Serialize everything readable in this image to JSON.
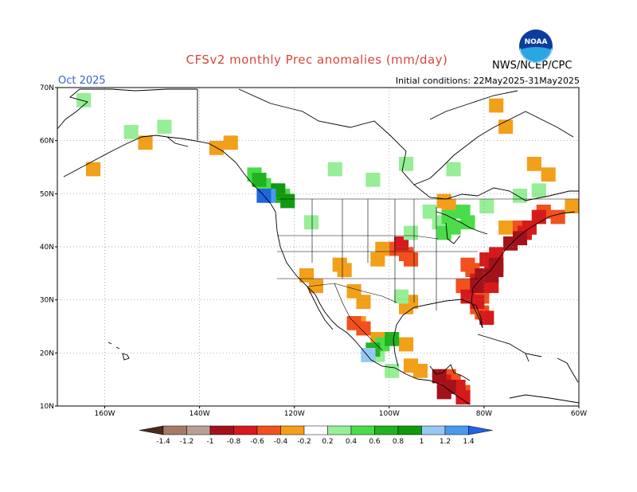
{
  "title": "CFSv2 monthly Prec anomalies (mm/day)",
  "month": "Oct 2025",
  "initial_conditions": "Initial conditions: 22May2025-31May2025",
  "agency": "NWS/NCEP/CPC",
  "logo_text": "NOAA",
  "colors": {
    "neg_1_4": "#6b4030",
    "neg_1_2": "#a77a66",
    "neg_1": "#b8a095",
    "neg_0_8": "#a3121a",
    "neg_0_6": "#d51a1c",
    "neg_0_4": "#f2501e",
    "neg_0_2": "#f29f1a",
    "pos_0_2": "#96ee96",
    "pos_0_4": "#4bdc4b",
    "pos_0_6": "#20b320",
    "pos_0_8": "#0f9a0f",
    "pos_1": "#96c8f5",
    "pos_1_2": "#4b99ee",
    "pos_1_4": "#1f64e0",
    "coast": "#000000",
    "grid": "#8c8c8c"
  },
  "map": {
    "lat_labels": [
      "70N",
      "60N",
      "50N",
      "40N",
      "30N",
      "20N",
      "10N"
    ],
    "lon_labels": [
      "160W",
      "140W",
      "120W",
      "100W",
      "80W",
      "60W"
    ]
  },
  "colorbar": {
    "labels": [
      "-1.4",
      "-1.2",
      "-1",
      "-0.8",
      "-0.6",
      "-0.4",
      "-0.2",
      "0.2",
      "0.4",
      "0.6",
      "0.8",
      "1",
      "1.2",
      "1.4"
    ]
  },
  "anomaly_regions": [
    {
      "level": "neg_0_2",
      "cells": [
        [
          48,
          -88
        ],
        [
          49,
          -89
        ],
        [
          40,
          -102
        ],
        [
          38,
          -103
        ],
        [
          37,
          -111
        ],
        [
          36,
          -110
        ],
        [
          33,
          -116
        ],
        [
          35,
          -118
        ],
        [
          32,
          -108
        ],
        [
          30,
          -106
        ],
        [
          26,
          -107
        ],
        [
          23,
          -103
        ],
        [
          22,
          -97
        ],
        [
          18,
          -96
        ],
        [
          17,
          -94
        ],
        [
          63,
          -76
        ],
        [
          56,
          -70
        ],
        [
          54,
          -67
        ],
        [
          44,
          -76
        ],
        [
          48,
          -62
        ],
        [
          60,
          -152
        ],
        [
          59,
          -137
        ],
        [
          60,
          -134
        ],
        [
          55,
          -163
        ],
        [
          30,
          -96
        ],
        [
          29,
          -97
        ],
        [
          67,
          -78
        ]
      ]
    },
    {
      "level": "neg_0_4",
      "cells": [
        [
          40,
          -99
        ],
        [
          39,
          -97
        ],
        [
          38,
          -96
        ],
        [
          26,
          -108
        ],
        [
          25,
          -106
        ],
        [
          16,
          -88
        ],
        [
          15,
          -87
        ],
        [
          13,
          -85
        ],
        [
          37,
          -84
        ],
        [
          36,
          -83
        ],
        [
          33,
          -85
        ],
        [
          31,
          -81
        ],
        [
          29,
          -82
        ],
        [
          28,
          -81
        ],
        [
          44,
          -73
        ],
        [
          47,
          -68
        ],
        [
          46,
          -65
        ]
      ]
    },
    {
      "level": "neg_0_6",
      "cells": [
        [
          41,
          -98
        ],
        [
          39,
          -78
        ],
        [
          38,
          -80
        ],
        [
          37,
          -79
        ],
        [
          34,
          -82
        ],
        [
          33,
          -79
        ],
        [
          31,
          -84
        ],
        [
          30,
          -82
        ],
        [
          27,
          -80
        ],
        [
          44,
          -71
        ],
        [
          43,
          -72
        ],
        [
          46,
          -69
        ],
        [
          15,
          -89
        ],
        [
          14,
          -86
        ],
        [
          12,
          -85
        ]
      ]
    },
    {
      "level": "neg_0_8",
      "cells": [
        [
          37,
          -78
        ],
        [
          36,
          -78
        ],
        [
          35,
          -79
        ],
        [
          35,
          -81
        ],
        [
          33,
          -82
        ],
        [
          41,
          -75
        ],
        [
          42,
          -73
        ],
        [
          16,
          -90
        ],
        [
          14,
          -88
        ],
        [
          13,
          -89
        ]
      ]
    },
    {
      "level": "pos_0_2",
      "cells": [
        [
          68,
          -165
        ],
        [
          62,
          -155
        ],
        [
          63,
          -148
        ],
        [
          55,
          -112
        ],
        [
          56,
          -97
        ],
        [
          55,
          -87
        ],
        [
          47,
          -92
        ],
        [
          45,
          -90
        ],
        [
          43,
          -96
        ],
        [
          48,
          -80
        ],
        [
          50,
          -73
        ],
        [
          51,
          -69
        ],
        [
          53,
          -104
        ],
        [
          49,
          -122
        ],
        [
          45,
          -117
        ],
        [
          31,
          -98
        ],
        [
          17,
          -100
        ],
        [
          20,
          -103
        ]
      ]
    },
    {
      "level": "pos_0_4",
      "cells": [
        [
          54,
          -129
        ],
        [
          52,
          -127
        ],
        [
          51,
          -125
        ],
        [
          50,
          -123
        ],
        [
          45,
          -84
        ],
        [
          47,
          -85
        ],
        [
          46,
          -88
        ],
        [
          44,
          -87
        ],
        [
          43,
          -89
        ],
        [
          22,
          -102
        ],
        [
          20,
          -105
        ]
      ]
    },
    {
      "level": "pos_0_6",
      "cells": [
        [
          53,
          -128
        ],
        [
          50,
          -124
        ],
        [
          23,
          -100
        ],
        [
          21,
          -104
        ]
      ]
    },
    {
      "level": "pos_0_8",
      "cells": [
        [
          51,
          -124
        ],
        [
          49,
          -122
        ]
      ]
    },
    {
      "level": "pos_1",
      "cells": [
        [
          20,
          -105
        ]
      ]
    },
    {
      "level": "pos_1_2",
      "cells": [
        [
          50,
          -126
        ]
      ]
    },
    {
      "level": "pos_1_4",
      "cells": [
        [
          50,
          -127
        ]
      ]
    }
  ]
}
